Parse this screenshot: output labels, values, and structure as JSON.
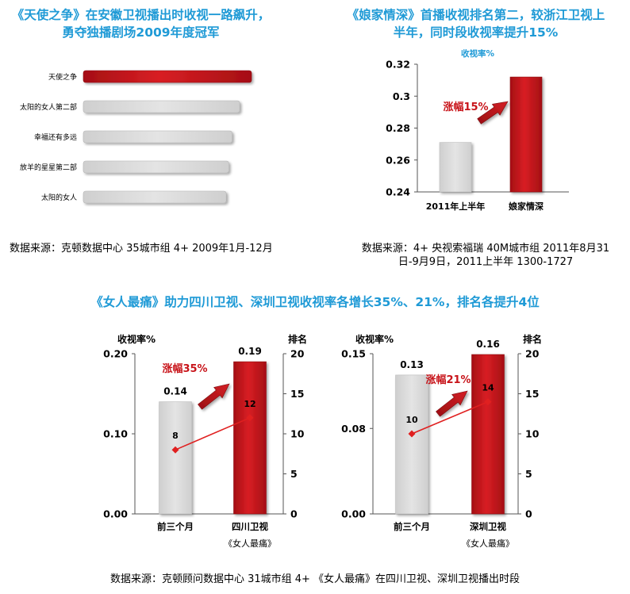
{
  "panel1": {
    "title_line1": "《天使之争》在安徽卫视播出时收视一路飙升，",
    "title_line2": "勇夺独播剧场2009年度冠军",
    "source": "数据来源：克顿数据中心  35城市组  4+ 2009年1月-12月"
  },
  "panel2": {
    "title_line1": "《娘家情深》首播收视排名第二，较浙江卫视上",
    "title_line2": "半年，同时段收视率提升15%",
    "source_line1": "数据来源：4+ 央视索福瑞  40M城市组  2011年8月31",
    "source_line2": "日-9月9日，2011上半年 1300-1727"
  },
  "bottom": {
    "title": "《女人最痛》助力四川卫视、深圳卫视收视率各增长35%、21%，排名各提升4位",
    "source": "数据来源：克顿顾问数据中心  31城市组 4+ 《女人最痛》在四川卫视、深圳卫视播出时段"
  },
  "colors": {
    "title_blue": "#1f9ad6",
    "highlight_red": "#c8141a",
    "bar_gray": "#d9d9d9"
  },
  "chart_data": [
    {
      "id": "ranking",
      "type": "bar",
      "orientation": "horizontal",
      "categories": [
        "天使之争",
        "太阳的女人第二部",
        "幸福还有多远",
        "放羊的星星第二部",
        "太阳的女人"
      ],
      "values": [
        1.0,
        0.93,
        0.885,
        0.865,
        0.85
      ],
      "value_unit": "relative",
      "highlight": "天使之争",
      "show_axis": false
    },
    {
      "id": "niangjia",
      "type": "bar",
      "categories": [
        "2011年上半年",
        "娘家情深"
      ],
      "values": [
        0.271,
        0.312
      ],
      "ylabel": "收视率%",
      "ylim": [
        0.24,
        0.32
      ],
      "yticks": [
        "0.24",
        "0.26",
        "0.28",
        "0.3",
        "0.32"
      ],
      "annotation": "涨幅15%"
    },
    {
      "id": "sichuan",
      "type": "bar",
      "categories": [
        "前三个月",
        "四川卫视"
      ],
      "subcategory_note": "《女人最痛》",
      "values": [
        0.14,
        0.19
      ],
      "value_labels": [
        "0.14",
        "0.19"
      ],
      "ylabel": "收视率%",
      "ylim": [
        0,
        0.2
      ],
      "yticks": [
        "0.00",
        "0.10",
        "0.20"
      ],
      "y2label": "排名",
      "y2lim": [
        0,
        20
      ],
      "y2ticks": [
        "0",
        "5",
        "10",
        "15",
        "20"
      ],
      "rank_line": [
        8,
        12
      ],
      "rank_labels": [
        "8",
        "12"
      ],
      "annotation": "涨幅35%"
    },
    {
      "id": "shenzhen",
      "type": "bar",
      "categories": [
        "前三个月",
        "深圳卫视"
      ],
      "subcategory_note": "《女人最痛》",
      "values": [
        0.13,
        0.16
      ],
      "value_labels": [
        "0.13",
        "0.16"
      ],
      "ylabel": "收视率%",
      "ylim": [
        0,
        0.15
      ],
      "yticks": [
        "0.00",
        "0.08",
        "0.15"
      ],
      "y2label": "排名",
      "y2lim": [
        0,
        20
      ],
      "y2ticks": [
        "0",
        "5",
        "10",
        "15",
        "20"
      ],
      "rank_line": [
        10,
        14
      ],
      "rank_labels": [
        "10",
        "14"
      ],
      "annotation": "涨幅21%"
    }
  ]
}
